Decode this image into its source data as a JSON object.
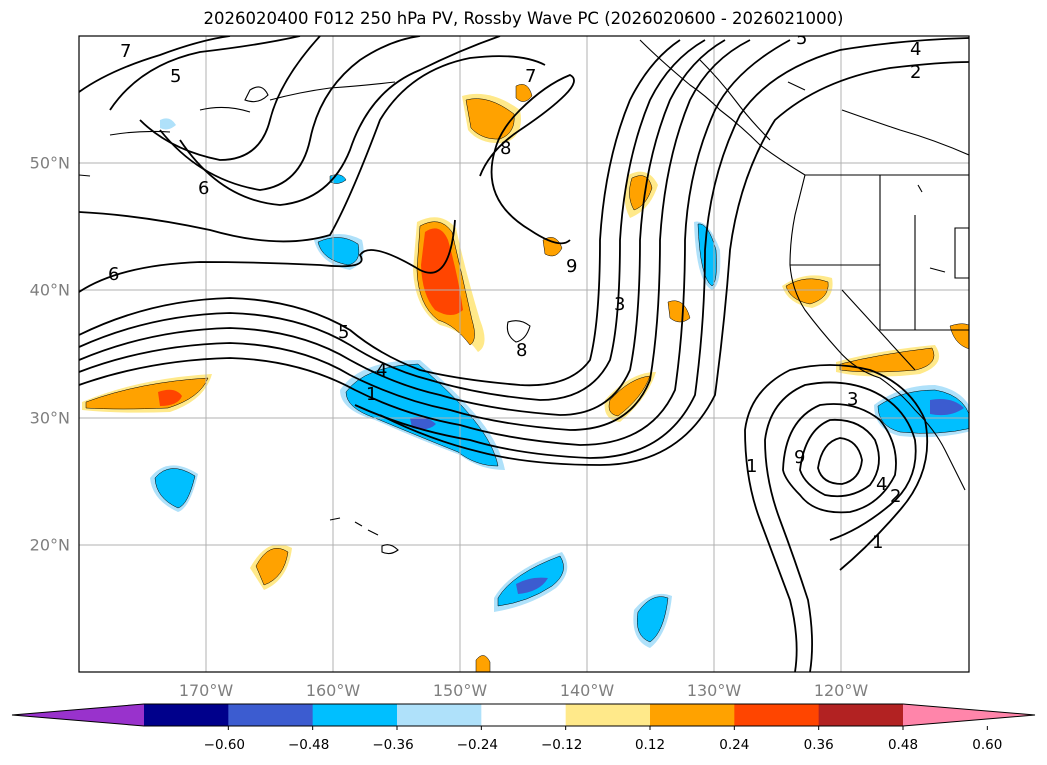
{
  "title": "2026020400 F012 250 hPa PV, Rossby Wave PC (2026020600 - 2026021000)",
  "latitude_labels": [
    "50°N",
    "40°N",
    "30°N",
    "20°N"
  ],
  "longitude_labels": [
    "170°W",
    "160°W",
    "150°W",
    "140°W",
    "130°W",
    "120°W"
  ],
  "map_extent": {
    "lon_min": -180,
    "lon_max": -110,
    "lat_min": 10,
    "lat_max": 60
  },
  "colorbar": {
    "ticks": [
      "-0.60",
      "-0.48",
      "-0.36",
      "-0.24",
      "-0.12",
      "0.12",
      "0.24",
      "0.36",
      "0.48",
      "0.60"
    ],
    "colors": [
      "#9932cc",
      "#00008b",
      "#3c5cd0",
      "#00bfff",
      "#afe1fa",
      "#ffffff",
      "#ffe98a",
      "#ffa200",
      "#ff4500",
      "#b22222",
      "#ff85aa"
    ],
    "extend": "both"
  },
  "contour_labels": [
    "7",
    "5",
    "6",
    "6",
    "8",
    "7",
    "9",
    "3",
    "8",
    "5",
    "4",
    "1",
    "3",
    "9",
    "1",
    "4",
    "2",
    "1",
    "5",
    "4",
    "2"
  ],
  "colors": {
    "contour": "#000000",
    "coast": "#000000",
    "grid": "#b0b0b0",
    "axis_label": "#7f7f7f"
  }
}
